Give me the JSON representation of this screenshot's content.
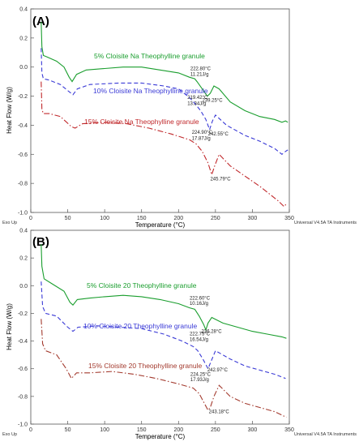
{
  "chart_data": [
    {
      "type": "line",
      "panel": "(A)",
      "xlabel": "Temperature (°C)",
      "ylabel": "Heat Flow (W/g)",
      "xlim": [
        0,
        350
      ],
      "ylim": [
        -1.0,
        0.4
      ],
      "xticks": [
        0,
        50,
        100,
        150,
        200,
        250,
        300,
        350
      ],
      "yticks": [
        0.4,
        0.2,
        0.0,
        -0.2,
        -0.4,
        -0.6,
        -0.8,
        -1.0
      ],
      "xtick_labels": [
        "0",
        "50",
        "100",
        "150",
        "200",
        "250",
        "300",
        "350"
      ],
      "ytick_labels": [
        "0.4",
        "0.2",
        "0.0",
        "-0.2",
        "-0.4",
        "-0.6",
        "-0.8",
        "-1.0"
      ],
      "footer_left": "Exo Up",
      "footer_right": "Universal V4.5A TA Instruments",
      "series": [
        {
          "name": "5% Cloisite Na Theophylline granule",
          "color": "#1a9e2e",
          "dash": "solid",
          "points": [
            [
              14,
              0.31
            ],
            [
              15,
              0.14
            ],
            [
              17,
              0.08
            ],
            [
              22,
              0.07
            ],
            [
              35,
              0.04
            ],
            [
              45,
              0.0
            ],
            [
              52,
              -0.07
            ],
            [
              56,
              -0.1
            ],
            [
              62,
              -0.05
            ],
            [
              75,
              -0.02
            ],
            [
              100,
              -0.01
            ],
            [
              125,
              0.0
            ],
            [
              150,
              0.0
            ],
            [
              175,
              -0.02
            ],
            [
              200,
              -0.04
            ],
            [
              215,
              -0.07
            ],
            [
              222,
              -0.08
            ],
            [
              225,
              -0.1
            ],
            [
              232,
              -0.15
            ],
            [
              239,
              -0.2
            ],
            [
              243,
              -0.18
            ],
            [
              248,
              -0.13
            ],
            [
              255,
              -0.15
            ],
            [
              270,
              -0.24
            ],
            [
              290,
              -0.3
            ],
            [
              310,
              -0.34
            ],
            [
              330,
              -0.36
            ],
            [
              340,
              -0.38
            ],
            [
              345,
              -0.37
            ],
            [
              348,
              -0.38
            ]
          ]
        },
        {
          "name": "10% Cloisite Na Theophylline granule",
          "color": "#3a3ad6",
          "dash": "dashed",
          "points": [
            [
              14,
              0.13
            ],
            [
              15,
              -0.04
            ],
            [
              17,
              -0.08
            ],
            [
              25,
              -0.09
            ],
            [
              40,
              -0.12
            ],
            [
              52,
              -0.17
            ],
            [
              57,
              -0.19
            ],
            [
              63,
              -0.15
            ],
            [
              80,
              -0.12
            ],
            [
              120,
              -0.11
            ],
            [
              150,
              -0.11
            ],
            [
              180,
              -0.13
            ],
            [
              200,
              -0.15
            ],
            [
              215,
              -0.21
            ],
            [
              222,
              -0.25
            ],
            [
              230,
              -0.3
            ],
            [
              237,
              -0.36
            ],
            [
              242,
              -0.43
            ],
            [
              246,
              -0.37
            ],
            [
              250,
              -0.33
            ],
            [
              265,
              -0.4
            ],
            [
              290,
              -0.47
            ],
            [
              310,
              -0.51
            ],
            [
              330,
              -0.56
            ],
            [
              340,
              -0.6
            ],
            [
              345,
              -0.58
            ],
            [
              348,
              -0.57
            ]
          ]
        },
        {
          "name": "15% Cloisite Na Theophylline granule",
          "color": "#c0282b",
          "dash": "dashdot",
          "points": [
            [
              14,
              -0.1
            ],
            [
              15,
              -0.29
            ],
            [
              17,
              -0.32
            ],
            [
              25,
              -0.32
            ],
            [
              40,
              -0.34
            ],
            [
              55,
              -0.41
            ],
            [
              60,
              -0.42
            ],
            [
              70,
              -0.39
            ],
            [
              100,
              -0.38
            ],
            [
              130,
              -0.39
            ],
            [
              160,
              -0.42
            ],
            [
              190,
              -0.46
            ],
            [
              215,
              -0.5
            ],
            [
              224,
              -0.53
            ],
            [
              232,
              -0.58
            ],
            [
              240,
              -0.66
            ],
            [
              245,
              -0.74
            ],
            [
              249,
              -0.68
            ],
            [
              255,
              -0.6
            ],
            [
              270,
              -0.68
            ],
            [
              290,
              -0.75
            ],
            [
              310,
              -0.82
            ],
            [
              325,
              -0.88
            ],
            [
              335,
              -0.92
            ],
            [
              343,
              -0.96
            ],
            [
              346,
              -0.94
            ]
          ]
        }
      ],
      "annotations": [
        {
          "text": "222.80°C",
          "x": 216,
          "y": -0.02
        },
        {
          "text": "11.21J/g",
          "x": 216,
          "y": -0.06
        },
        {
          "text": "239.25°C",
          "x": 232,
          "y": -0.24
        },
        {
          "text": "219.42°C",
          "x": 212,
          "y": -0.22
        },
        {
          "text": "13.34J/g",
          "x": 212,
          "y": -0.26
        },
        {
          "text": "242.55°C",
          "x": 240,
          "y": -0.47
        },
        {
          "text": "224.90°C",
          "x": 218,
          "y": -0.46
        },
        {
          "text": "17.87J/g",
          "x": 218,
          "y": -0.5
        },
        {
          "text": "245.79°C",
          "x": 243,
          "y": -0.78
        }
      ]
    },
    {
      "type": "line",
      "panel": "(B)",
      "xlabel": "Temperature (°C)",
      "ylabel": "Heat Flow (W/g)",
      "xlim": [
        0,
        350
      ],
      "ylim": [
        -1.0,
        0.4
      ],
      "xticks": [
        0,
        50,
        100,
        150,
        200,
        250,
        300,
        350
      ],
      "yticks": [
        0.4,
        0.2,
        0.0,
        -0.2,
        -0.4,
        -0.6,
        -0.8,
        -1.0
      ],
      "xtick_labels": [
        "0",
        "50",
        "100",
        "150",
        "200",
        "250",
        "300",
        "350"
      ],
      "ytick_labels": [
        "0.4",
        "0.2",
        "0.0",
        "-0.2",
        "-0.4",
        "-0.6",
        "-0.8",
        "-1.0"
      ],
      "footer_left": "Exo Up",
      "footer_right": "Universal V4.5A TA Instruments",
      "series": [
        {
          "name": "5% Cloisite 20 Theophylline granule",
          "color": "#1a9e2e",
          "dash": "solid",
          "points": [
            [
              14,
              0.3
            ],
            [
              15,
              0.14
            ],
            [
              18,
              0.05
            ],
            [
              30,
              0.01
            ],
            [
              45,
              -0.04
            ],
            [
              53,
              -0.12
            ],
            [
              57,
              -0.14
            ],
            [
              63,
              -0.1
            ],
            [
              80,
              -0.09
            ],
            [
              100,
              -0.08
            ],
            [
              125,
              -0.07
            ],
            [
              150,
              -0.08
            ],
            [
              175,
              -0.1
            ],
            [
              200,
              -0.13
            ],
            [
              215,
              -0.16
            ],
            [
              222,
              -0.17
            ],
            [
              228,
              -0.22
            ],
            [
              234,
              -0.28
            ],
            [
              237,
              -0.32
            ],
            [
              240,
              -0.27
            ],
            [
              245,
              -0.23
            ],
            [
              260,
              -0.27
            ],
            [
              280,
              -0.3
            ],
            [
              300,
              -0.33
            ],
            [
              320,
              -0.35
            ],
            [
              340,
              -0.37
            ],
            [
              346,
              -0.38
            ]
          ]
        },
        {
          "name": "10% Cloisite 20 Theophylline granule",
          "color": "#3a3ad6",
          "dash": "dashed",
          "points": [
            [
              14,
              0.03
            ],
            [
              16,
              -0.15
            ],
            [
              20,
              -0.2
            ],
            [
              35,
              -0.22
            ],
            [
              50,
              -0.3
            ],
            [
              57,
              -0.33
            ],
            [
              64,
              -0.3
            ],
            [
              90,
              -0.29
            ],
            [
              120,
              -0.3
            ],
            [
              150,
              -0.31
            ],
            [
              180,
              -0.35
            ],
            [
              205,
              -0.4
            ],
            [
              220,
              -0.44
            ],
            [
              226,
              -0.47
            ],
            [
              233,
              -0.53
            ],
            [
              240,
              -0.6
            ],
            [
              243,
              -0.56
            ],
            [
              250,
              -0.47
            ],
            [
              270,
              -0.53
            ],
            [
              290,
              -0.58
            ],
            [
              310,
              -0.61
            ],
            [
              330,
              -0.64
            ],
            [
              345,
              -0.67
            ]
          ]
        },
        {
          "name": "15% Cloisite 20 Theophylline granule",
          "color": "#a33a2e",
          "dash": "dashdot",
          "points": [
            [
              14,
              -0.24
            ],
            [
              16,
              -0.42
            ],
            [
              20,
              -0.47
            ],
            [
              35,
              -0.5
            ],
            [
              48,
              -0.6
            ],
            [
              55,
              -0.67
            ],
            [
              62,
              -0.63
            ],
            [
              80,
              -0.63
            ],
            [
              110,
              -0.62
            ],
            [
              140,
              -0.64
            ],
            [
              170,
              -0.67
            ],
            [
              200,
              -0.71
            ],
            [
              220,
              -0.74
            ],
            [
              228,
              -0.78
            ],
            [
              234,
              -0.84
            ],
            [
              240,
              -0.9
            ],
            [
              243,
              -0.88
            ],
            [
              248,
              -0.8
            ],
            [
              255,
              -0.72
            ],
            [
              270,
              -0.8
            ],
            [
              290,
              -0.85
            ],
            [
              310,
              -0.88
            ],
            [
              330,
              -0.91
            ],
            [
              346,
              -0.95
            ]
          ]
        }
      ],
      "annotations": [
        {
          "text": "222.60°C",
          "x": 215,
          "y": -0.1
        },
        {
          "text": "10.16J/g",
          "x": 215,
          "y": -0.14
        },
        {
          "text": "236.28°C",
          "x": 231,
          "y": -0.34
        },
        {
          "text": "222.75°C",
          "x": 215,
          "y": -0.36
        },
        {
          "text": "16.54J/g",
          "x": 215,
          "y": -0.4
        },
        {
          "text": "242.97°C",
          "x": 239,
          "y": -0.62
        },
        {
          "text": "224.25°C",
          "x": 216,
          "y": -0.65
        },
        {
          "text": "17.93J/g",
          "x": 216,
          "y": -0.69
        },
        {
          "text": "243.18°C",
          "x": 241,
          "y": -0.92
        }
      ]
    }
  ]
}
